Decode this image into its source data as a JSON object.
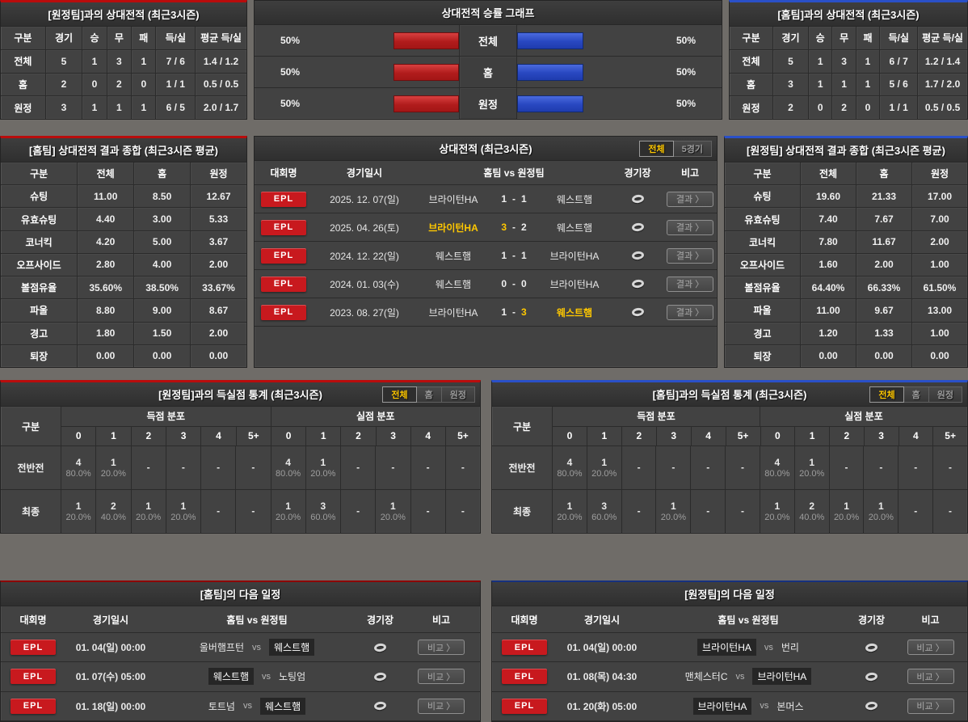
{
  "colors": {
    "accent_red": "#b90c0c",
    "accent_blue": "#2a50c8",
    "highlight_yellow": "#ffc800",
    "badge_red": "#c8191e"
  },
  "away_record": {
    "title": "[원정팀]과의 상대전적 (최근3시즌)",
    "headers": [
      "구분",
      "경기",
      "승",
      "무",
      "패",
      "득/실",
      "평균 득/실"
    ],
    "rows": [
      {
        "label": "전체",
        "games": "5",
        "w": "1",
        "d": "3",
        "l": "1",
        "score": "7 / 6",
        "avg": "1.4 / 1.2"
      },
      {
        "label": "홈",
        "games": "2",
        "w": "0",
        "d": "2",
        "l": "0",
        "score": "1 / 1",
        "avg": "0.5 / 0.5"
      },
      {
        "label": "원정",
        "games": "3",
        "w": "1",
        "d": "1",
        "l": "1",
        "score": "6 / 5",
        "avg": "2.0 / 1.7"
      }
    ]
  },
  "winrate_chart": {
    "title": "상대전적 승률 그래프",
    "rows": [
      {
        "label": "전체",
        "left_pct": "50%",
        "left_val": 50,
        "right_pct": "50%",
        "right_val": 50
      },
      {
        "label": "홈",
        "left_pct": "50%",
        "left_val": 50,
        "right_pct": "50%",
        "right_val": 50
      },
      {
        "label": "원정",
        "left_pct": "50%",
        "left_val": 50,
        "right_pct": "50%",
        "right_val": 50
      }
    ]
  },
  "home_record": {
    "title": "[홈팀]과의 상대전적 (최근3시즌)",
    "headers": [
      "구분",
      "경기",
      "승",
      "무",
      "패",
      "득/실",
      "평균 득/실"
    ],
    "rows": [
      {
        "label": "전체",
        "games": "5",
        "w": "1",
        "d": "3",
        "l": "1",
        "score": "6 / 7",
        "avg": "1.2 / 1.4"
      },
      {
        "label": "홈",
        "games": "3",
        "w": "1",
        "d": "1",
        "l": "1",
        "score": "5 / 6",
        "avg": "1.7 / 2.0"
      },
      {
        "label": "원정",
        "games": "2",
        "w": "0",
        "d": "2",
        "l": "0",
        "score": "1 / 1",
        "avg": "0.5 / 0.5"
      }
    ]
  },
  "home_summary": {
    "title": "[홈팀] 상대전적 결과 종합 (최근3시즌 평균)",
    "headers": [
      "구분",
      "전체",
      "홈",
      "원정"
    ],
    "rows": [
      {
        "label": "슈팅",
        "total": "11.00",
        "home": "8.50",
        "away": "12.67"
      },
      {
        "label": "유효슈팅",
        "total": "4.40",
        "home": "3.00",
        "away": "5.33"
      },
      {
        "label": "코너킥",
        "total": "4.20",
        "home": "5.00",
        "away": "3.67"
      },
      {
        "label": "오프사이드",
        "total": "2.80",
        "home": "4.00",
        "away": "2.00"
      },
      {
        "label": "볼점유율",
        "total": "35.60%",
        "home": "38.50%",
        "away": "33.67%"
      },
      {
        "label": "파울",
        "total": "8.80",
        "home": "9.00",
        "away": "8.67"
      },
      {
        "label": "경고",
        "total": "1.80",
        "home": "1.50",
        "away": "2.00"
      },
      {
        "label": "퇴장",
        "total": "0.00",
        "home": "0.00",
        "away": "0.00"
      }
    ]
  },
  "h2h_matches": {
    "title": "상대전적 (최근3시즌)",
    "tabs": [
      {
        "label": "전체",
        "active": true
      },
      {
        "label": "5경기"
      }
    ],
    "headers": [
      "대회명",
      "경기일시",
      "홈팀 vs 원정팀",
      "경기장",
      "비고"
    ],
    "result_label": "결과 〉",
    "dash": "-",
    "rows": [
      {
        "league": "EPL",
        "date": "2025. 12. 07(일)",
        "home": "브라이턴HA",
        "hs": "1",
        "as": "1",
        "away": "웨스트햄"
      },
      {
        "league": "EPL",
        "date": "2025. 04. 26(토)",
        "home": "브라이턴HA",
        "hs": "3",
        "as": "2",
        "away": "웨스트햄",
        "home_win": true
      },
      {
        "league": "EPL",
        "date": "2024. 12. 22(일)",
        "home": "웨스트햄",
        "hs": "1",
        "as": "1",
        "away": "브라이턴HA"
      },
      {
        "league": "EPL",
        "date": "2024. 01. 03(수)",
        "home": "웨스트햄",
        "hs": "0",
        "as": "0",
        "away": "브라이턴HA"
      },
      {
        "league": "EPL",
        "date": "2023. 08. 27(일)",
        "home": "브라이턴HA",
        "hs": "1",
        "as": "3",
        "away": "웨스트햄",
        "away_win": true
      }
    ]
  },
  "away_summary": {
    "title": "[원정팀] 상대전적 결과 종합 (최근3시즌 평균)",
    "headers": [
      "구분",
      "전체",
      "홈",
      "원정"
    ],
    "rows": [
      {
        "label": "슈팅",
        "total": "19.60",
        "home": "21.33",
        "away": "17.00"
      },
      {
        "label": "유효슈팅",
        "total": "7.40",
        "home": "7.67",
        "away": "7.00"
      },
      {
        "label": "코너킥",
        "total": "7.80",
        "home": "11.67",
        "away": "2.00"
      },
      {
        "label": "오프사이드",
        "total": "1.60",
        "home": "2.00",
        "away": "1.00"
      },
      {
        "label": "볼점유율",
        "total": "64.40%",
        "home": "66.33%",
        "away": "61.50%"
      },
      {
        "label": "파울",
        "total": "11.00",
        "home": "9.67",
        "away": "13.00"
      },
      {
        "label": "경고",
        "total": "1.20",
        "home": "1.33",
        "away": "1.00"
      },
      {
        "label": "퇴장",
        "total": "0.00",
        "home": "0.00",
        "away": "0.00"
      }
    ]
  },
  "away_goals_stats": {
    "title": "[원정팀]과의 득실점 통계 (최근3시즌)",
    "tabs": [
      {
        "label": "전체",
        "active": true
      },
      {
        "label": "홈"
      },
      {
        "label": "원정"
      }
    ],
    "corner_label": "구분",
    "scored_label": "득점 분포",
    "conceded_label": "실점 분포",
    "bins": [
      "0",
      "1",
      "2",
      "3",
      "4",
      "5+"
    ],
    "rows": [
      {
        "label": "전반전",
        "cells": [
          {
            "n": "4",
            "pct": "80.0%"
          },
          {
            "n": "1",
            "pct": "20.0%"
          },
          {
            "n": "-",
            "pct": ""
          },
          {
            "n": "-",
            "pct": ""
          },
          {
            "n": "-",
            "pct": ""
          },
          {
            "n": "-",
            "pct": ""
          },
          {
            "n": "4",
            "pct": "80.0%"
          },
          {
            "n": "1",
            "pct": "20.0%"
          },
          {
            "n": "-",
            "pct": ""
          },
          {
            "n": "-",
            "pct": ""
          },
          {
            "n": "-",
            "pct": ""
          },
          {
            "n": "-",
            "pct": ""
          }
        ]
      },
      {
        "label": "최종",
        "cells": [
          {
            "n": "1",
            "pct": "20.0%"
          },
          {
            "n": "2",
            "pct": "40.0%"
          },
          {
            "n": "1",
            "pct": "20.0%"
          },
          {
            "n": "1",
            "pct": "20.0%"
          },
          {
            "n": "-",
            "pct": ""
          },
          {
            "n": "-",
            "pct": ""
          },
          {
            "n": "1",
            "pct": "20.0%"
          },
          {
            "n": "3",
            "pct": "60.0%"
          },
          {
            "n": "-",
            "pct": ""
          },
          {
            "n": "1",
            "pct": "20.0%"
          },
          {
            "n": "-",
            "pct": ""
          },
          {
            "n": "-",
            "pct": ""
          }
        ]
      }
    ]
  },
  "home_goals_stats": {
    "title": "[홈팀]과의 득실점 통계 (최근3시즌)",
    "tabs": [
      {
        "label": "전체",
        "active": true
      },
      {
        "label": "홈"
      },
      {
        "label": "원정"
      }
    ],
    "corner_label": "구분",
    "scored_label": "득점 분포",
    "conceded_label": "실점 분포",
    "bins": [
      "0",
      "1",
      "2",
      "3",
      "4",
      "5+"
    ],
    "rows": [
      {
        "label": "전반전",
        "cells": [
          {
            "n": "4",
            "pct": "80.0%"
          },
          {
            "n": "1",
            "pct": "20.0%"
          },
          {
            "n": "-",
            "pct": ""
          },
          {
            "n": "-",
            "pct": ""
          },
          {
            "n": "-",
            "pct": ""
          },
          {
            "n": "-",
            "pct": ""
          },
          {
            "n": "4",
            "pct": "80.0%"
          },
          {
            "n": "1",
            "pct": "20.0%"
          },
          {
            "n": "-",
            "pct": ""
          },
          {
            "n": "-",
            "pct": ""
          },
          {
            "n": "-",
            "pct": ""
          },
          {
            "n": "-",
            "pct": ""
          }
        ]
      },
      {
        "label": "최종",
        "cells": [
          {
            "n": "1",
            "pct": "20.0%"
          },
          {
            "n": "3",
            "pct": "60.0%"
          },
          {
            "n": "-",
            "pct": ""
          },
          {
            "n": "1",
            "pct": "20.0%"
          },
          {
            "n": "-",
            "pct": ""
          },
          {
            "n": "-",
            "pct": ""
          },
          {
            "n": "1",
            "pct": "20.0%"
          },
          {
            "n": "2",
            "pct": "40.0%"
          },
          {
            "n": "1",
            "pct": "20.0%"
          },
          {
            "n": "1",
            "pct": "20.0%"
          },
          {
            "n": "-",
            "pct": ""
          },
          {
            "n": "-",
            "pct": ""
          }
        ]
      }
    ]
  },
  "home_schedule": {
    "title": "[홈팀]의 다음 일정",
    "headers": [
      "대회명",
      "경기일시",
      "홈팀 vs 원정팀",
      "경기장",
      "비고"
    ],
    "compare_label": "비교 〉",
    "vs_label": "vs",
    "rows": [
      {
        "league": "EPL",
        "date": "01. 04(일) 00:00",
        "home": "울버햄프턴",
        "away": "웨스트햄",
        "away_focus": true
      },
      {
        "league": "EPL",
        "date": "01. 07(수) 05:00",
        "home": "웨스트햄",
        "away": "노팅엄",
        "home_focus": true
      },
      {
        "league": "EPL",
        "date": "01. 18(일) 00:00",
        "home": "토트넘",
        "away": "웨스트햄",
        "away_focus": true
      }
    ]
  },
  "away_schedule": {
    "title": "[원정팀]의 다음 일정",
    "headers": [
      "대회명",
      "경기일시",
      "홈팀 vs 원정팀",
      "경기장",
      "비고"
    ],
    "compare_label": "비교 〉",
    "vs_label": "vs",
    "rows": [
      {
        "league": "EPL",
        "date": "01. 04(일) 00:00",
        "home": "브라이턴HA",
        "away": "번리",
        "home_focus": true
      },
      {
        "league": "EPL",
        "date": "01. 08(목) 04:30",
        "home": "맨체스터C",
        "away": "브라이턴HA",
        "away_focus": true
      },
      {
        "league": "EPL",
        "date": "01. 20(화) 05:00",
        "home": "브라이턴HA",
        "away": "본머스",
        "home_focus": true
      }
    ]
  }
}
